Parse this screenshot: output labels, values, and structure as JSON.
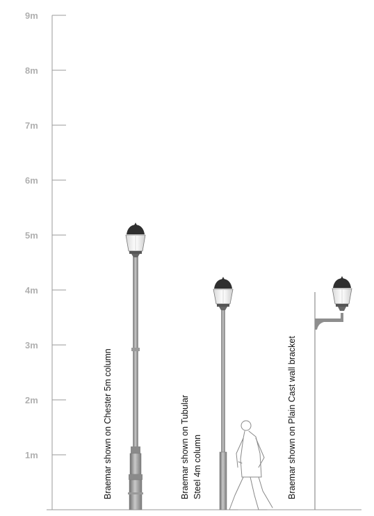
{
  "scale": {
    "labels": [
      "1m",
      "2m",
      "3m",
      "4m",
      "5m",
      "6m",
      "7m",
      "8m",
      "9m"
    ]
  },
  "products": [
    {
      "lines": [
        "Braemar shown on Chester 5m column"
      ]
    },
    {
      "lines": [
        "Braemar shown on Tubular",
        "Steel 4m column"
      ]
    },
    {
      "lines": [
        "Braemar shown on Plain Cast wall bracket"
      ]
    }
  ],
  "colors": {
    "axis": "#9a9a9a",
    "scale_text": "#b0b0b0",
    "lantern_cap": "#2f2f2f",
    "lantern_glass": "#f3f3f3",
    "column": "#8e8e8e",
    "figure": "#888888",
    "text": "#111111"
  },
  "icons": [
    "lantern-icon",
    "pedestrian-icon"
  ]
}
